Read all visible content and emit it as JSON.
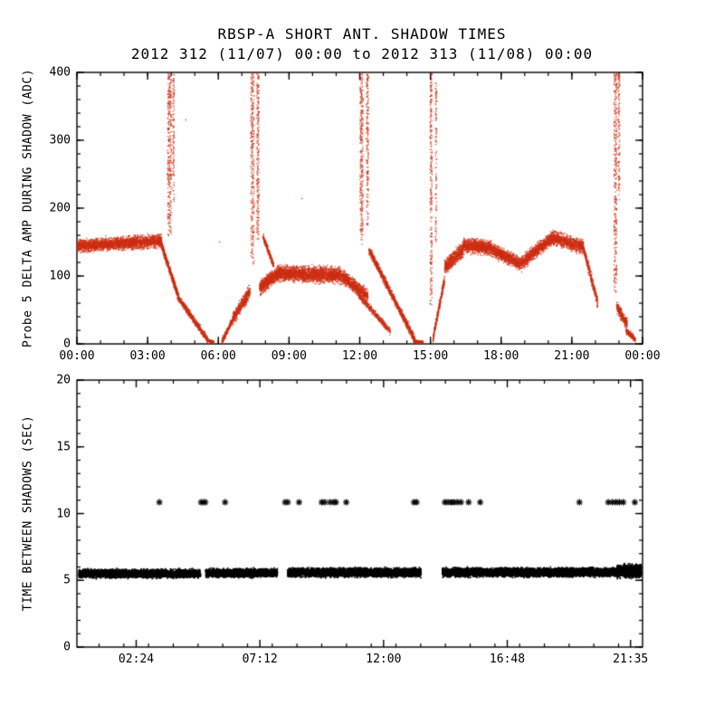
{
  "chart_data": [
    {
      "type": "scatter",
      "panel": "top",
      "title": "RBSP-A SHORT ANT. SHADOW TIMES",
      "subtitle": "2012 312 (11/07) 00:00 to 2012 313 (11/08) 00:00",
      "ylabel": "Probe 5 DELTA AMP DURING SHADOW (ADC)",
      "xlabel": "",
      "ylim": [
        0,
        400
      ],
      "yticks": [
        0,
        100,
        200,
        300,
        400
      ],
      "ytick_labels": [
        "0",
        "100",
        "200",
        "300",
        "400"
      ],
      "xlim": [
        0,
        24
      ],
      "xticks": [
        {
          "h": 0,
          "label": "00:00"
        },
        {
          "h": 3,
          "label": "03:00"
        },
        {
          "h": 6,
          "label": "06:00"
        },
        {
          "h": 9,
          "label": "09:00"
        },
        {
          "h": 12,
          "label": "12:00"
        },
        {
          "h": 15,
          "label": "15:00"
        },
        {
          "h": 18,
          "label": "18:00"
        },
        {
          "h": 21,
          "label": "21:00"
        },
        {
          "h": 24,
          "label": "00:00"
        }
      ],
      "x_minor": 1,
      "y_minor": 20,
      "marker": "dot",
      "color": "#cc2d12",
      "bands_format": "t0_hours,t1_hours,y0_adc,y1_adc,spread_adc,n_points",
      "bands": [
        [
          0.0,
          3.6,
          144,
          152,
          13,
          2600
        ],
        [
          3.55,
          4.3,
          150,
          70,
          9,
          600
        ],
        [
          4.3,
          5.55,
          68,
          6,
          7,
          700
        ],
        [
          5.55,
          5.8,
          5,
          3,
          2.5,
          150
        ],
        [
          6.15,
          6.6,
          3,
          35,
          7,
          260
        ],
        [
          6.6,
          7.35,
          35,
          78,
          13,
          520
        ],
        [
          7.75,
          8.5,
          82,
          103,
          14,
          700
        ],
        [
          8.5,
          11.2,
          104,
          101,
          16,
          2300
        ],
        [
          11.2,
          12.35,
          101,
          70,
          14,
          850
        ],
        [
          7.9,
          8.35,
          158,
          115,
          7,
          260
        ],
        [
          12.4,
          14.35,
          138,
          5,
          9,
          1200
        ],
        [
          11.95,
          13.3,
          72,
          18,
          7,
          450
        ],
        [
          14.3,
          14.7,
          4,
          2,
          3,
          180
        ],
        [
          15.1,
          15.6,
          6,
          95,
          10,
          320
        ],
        [
          15.6,
          16.4,
          112,
          140,
          15,
          650
        ],
        [
          16.4,
          17.6,
          146,
          141,
          15,
          1000
        ],
        [
          17.6,
          18.85,
          139,
          117,
          14,
          900
        ],
        [
          18.85,
          20.2,
          119,
          157,
          14,
          1000
        ],
        [
          20.2,
          21.5,
          156,
          143,
          14,
          900
        ],
        [
          21.5,
          22.1,
          140,
          60,
          11,
          350
        ],
        [
          22.9,
          23.35,
          55,
          28,
          12,
          300
        ],
        [
          23.3,
          23.7,
          20,
          6,
          6,
          220
        ]
      ],
      "spikes_format": "t_hours,width_hours,y0_adc,y1_adc,n_points",
      "spikes": [
        [
          3.93,
          0.16,
          155,
          400,
          330
        ],
        [
          4.1,
          0.07,
          210,
          398,
          110
        ],
        [
          7.45,
          0.14,
          115,
          400,
          300
        ],
        [
          7.68,
          0.1,
          150,
          400,
          230
        ],
        [
          12.08,
          0.14,
          145,
          400,
          300
        ],
        [
          12.33,
          0.09,
          175,
          400,
          190
        ],
        [
          15.03,
          0.09,
          55,
          400,
          260
        ],
        [
          15.24,
          0.06,
          150,
          385,
          110
        ],
        [
          22.85,
          0.13,
          75,
          400,
          320
        ],
        [
          23.0,
          0.07,
          210,
          400,
          120
        ]
      ],
      "strays_format": "t_hours,y_adc",
      "strays": [
        [
          9.55,
          214
        ],
        [
          4.62,
          330
        ],
        [
          23.5,
          10
        ],
        [
          6.05,
          150
        ]
      ]
    },
    {
      "type": "scatter",
      "panel": "bottom",
      "title": "",
      "ylabel": "TIME BETWEEN SHADOWS (SEC)",
      "xlabel": "",
      "ylim": [
        0,
        20
      ],
      "yticks": [
        0,
        5,
        10,
        15,
        20
      ],
      "ytick_labels": [
        "0",
        "5",
        "10",
        "15",
        "20"
      ],
      "xlim": [
        0.1,
        22.05
      ],
      "xticks": [
        {
          "h": 2.4,
          "label": "02:24"
        },
        {
          "h": 7.2,
          "label": "07:12"
        },
        {
          "h": 12.0,
          "label": "12:00"
        },
        {
          "h": 16.8,
          "label": "16:48"
        },
        {
          "h": 21.583,
          "label": "21:35"
        }
      ],
      "x_minor": 0.96,
      "y_minor": 1,
      "marker": "asterisk",
      "color": "#000000",
      "band_segments_format": "t0_hours,t1_hours,y_center_sec,half_thickness_sec,n_points",
      "band_segments": [
        [
          0.18,
          4.9,
          5.5,
          0.42,
          4200
        ],
        [
          5.1,
          7.88,
          5.55,
          0.42,
          2600
        ],
        [
          8.28,
          13.45,
          5.58,
          0.44,
          4800
        ],
        [
          14.28,
          21.05,
          5.6,
          0.44,
          6200
        ],
        [
          21.05,
          22.0,
          5.68,
          0.62,
          1400
        ]
      ],
      "star_y_sec": 10.85,
      "star_times_hours": [
        3.3,
        4.92,
        5.0,
        5.08,
        5.85,
        8.18,
        8.28,
        8.72,
        9.6,
        9.72,
        9.93,
        10.08,
        10.15,
        10.55,
        13.18,
        13.28,
        14.38,
        14.5,
        14.62,
        14.73,
        14.86,
        15.0,
        15.3,
        15.75,
        19.6,
        20.72,
        20.88,
        21.02,
        21.15,
        21.3,
        21.75
      ]
    }
  ]
}
